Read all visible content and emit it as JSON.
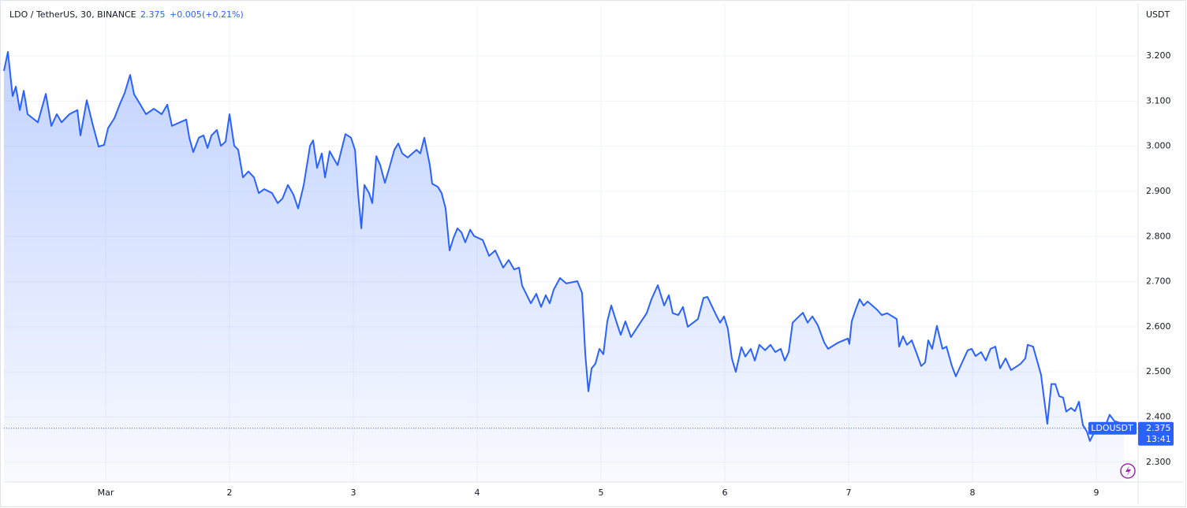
{
  "header": {
    "close": "2.375",
    "change": "+0.005",
    "change_percent": "(+0.21%)"
  },
  "chart_data": {
    "type": "area",
    "title": "LDO / TetherUS, 30, BINANCE",
    "y_label": "USDT",
    "countdown": "13:41",
    "xlim": [
      0.178,
      9.338
    ],
    "ylim": [
      2.256,
      3.31
    ],
    "grid": true,
    "xticks": [
      {
        "value": 1,
        "label": "Mar"
      },
      2,
      3,
      4,
      5,
      6,
      7,
      8,
      9
    ],
    "yticks": [
      {
        "value": 2.3,
        "label": "2.300"
      },
      {
        "value": 2.4,
        "label": "2.400"
      },
      {
        "value": 2.5,
        "label": "2.500"
      },
      {
        "value": 2.6,
        "label": "2.600"
      },
      {
        "value": 2.7,
        "label": "2.700"
      },
      {
        "value": 2.8,
        "label": "2.800"
      },
      {
        "value": 2.9,
        "label": "2.900"
      },
      {
        "value": 3.0,
        "label": "3.000"
      },
      {
        "value": 3.1,
        "label": "3.100"
      },
      {
        "value": 3.2,
        "label": "3.200"
      }
    ],
    "x": [
      0.178,
      0.21,
      0.248,
      0.274,
      0.306,
      0.338,
      0.369,
      0.452,
      0.516,
      0.561,
      0.605,
      0.643,
      0.707,
      0.771,
      0.796,
      0.847,
      0.898,
      0.943,
      0.987,
      1.019,
      1.07,
      1.115,
      1.153,
      1.197,
      1.229,
      1.28,
      1.325,
      1.389,
      1.452,
      1.497,
      1.535,
      1.599,
      1.65,
      1.675,
      1.707,
      1.752,
      1.79,
      1.822,
      1.854,
      1.898,
      1.93,
      1.968,
      2.0,
      2.038,
      2.07,
      2.108,
      2.153,
      2.197,
      2.236,
      2.28,
      2.344,
      2.389,
      2.427,
      2.471,
      2.516,
      2.554,
      2.599,
      2.65,
      2.675,
      2.707,
      2.745,
      2.771,
      2.809,
      2.847,
      2.873,
      2.936,
      2.981,
      3.013,
      3.038,
      3.064,
      3.089,
      3.127,
      3.153,
      3.185,
      3.217,
      3.255,
      3.287,
      3.331,
      3.363,
      3.395,
      3.439,
      3.51,
      3.541,
      3.573,
      3.618,
      3.637,
      3.682,
      3.713,
      3.745,
      3.777,
      3.809,
      3.841,
      3.873,
      3.904,
      3.943,
      3.975,
      4.045,
      4.096,
      4.146,
      4.21,
      4.255,
      4.299,
      4.338,
      4.363,
      4.401,
      4.433,
      4.478,
      4.516,
      4.554,
      4.586,
      4.618,
      4.669,
      4.72,
      4.809,
      4.847,
      4.873,
      4.898,
      4.924,
      4.955,
      4.987,
      5.019,
      5.051,
      5.083,
      5.127,
      5.159,
      5.197,
      5.242,
      5.318,
      5.369,
      5.408,
      5.459,
      5.484,
      5.51,
      5.548,
      5.58,
      5.624,
      5.662,
      5.701,
      5.783,
      5.828,
      5.86,
      5.93,
      5.962,
      5.994,
      6.025,
      6.057,
      6.089,
      6.134,
      6.166,
      6.21,
      6.242,
      6.28,
      6.325,
      6.369,
      6.408,
      6.452,
      6.484,
      6.516,
      6.548,
      6.592,
      6.631,
      6.669,
      6.707,
      6.752,
      6.803,
      6.834,
      6.917,
      6.994,
      7.006,
      7.025,
      7.057,
      7.089,
      7.121,
      7.153,
      7.229,
      7.268,
      7.312,
      7.389,
      7.408,
      7.439,
      7.471,
      7.51,
      7.548,
      7.586,
      7.618,
      7.643,
      7.675,
      7.713,
      7.758,
      7.79,
      7.834,
      7.866,
      7.917,
      7.962,
      7.994,
      8.025,
      8.07,
      8.108,
      8.146,
      8.185,
      8.223,
      8.268,
      8.312,
      8.389,
      8.427,
      8.446,
      8.49,
      8.522,
      8.554,
      8.58,
      8.605,
      8.637,
      8.669,
      8.701,
      8.732,
      8.758,
      8.796,
      8.828,
      8.86,
      8.892,
      8.924,
      8.949,
      8.987,
      9.032,
      9.076,
      9.108,
      9.146,
      9.191,
      9.223
    ],
    "series": [
      {
        "name": "LDOUSDT",
        "color": "#2962ff",
        "values": [
          3.167,
          3.209,
          3.111,
          3.132,
          3.08,
          3.123,
          3.071,
          3.053,
          3.116,
          3.045,
          3.071,
          3.053,
          3.071,
          3.08,
          3.024,
          3.102,
          3.045,
          2.999,
          3.003,
          3.04,
          3.062,
          3.094,
          3.118,
          3.158,
          3.115,
          3.092,
          3.071,
          3.083,
          3.071,
          3.092,
          3.045,
          3.053,
          3.059,
          3.019,
          2.987,
          3.019,
          3.024,
          2.996,
          3.024,
          3.036,
          3.001,
          3.01,
          3.071,
          3.001,
          2.992,
          2.931,
          2.944,
          2.931,
          2.896,
          2.905,
          2.896,
          2.874,
          2.884,
          2.914,
          2.893,
          2.862,
          2.914,
          3.001,
          3.013,
          2.952,
          2.984,
          2.931,
          2.989,
          2.97,
          2.958,
          3.027,
          3.019,
          2.992,
          2.896,
          2.818,
          2.914,
          2.896,
          2.874,
          2.978,
          2.958,
          2.919,
          2.949,
          2.992,
          3.006,
          2.984,
          2.975,
          2.992,
          2.984,
          3.019,
          2.958,
          2.917,
          2.91,
          2.896,
          2.862,
          2.769,
          2.797,
          2.818,
          2.809,
          2.787,
          2.815,
          2.801,
          2.792,
          2.757,
          2.769,
          2.731,
          2.748,
          2.727,
          2.731,
          2.691,
          2.67,
          2.652,
          2.673,
          2.644,
          2.67,
          2.652,
          2.682,
          2.708,
          2.696,
          2.701,
          2.675,
          2.539,
          2.457,
          2.508,
          2.518,
          2.551,
          2.539,
          2.612,
          2.647,
          2.609,
          2.582,
          2.612,
          2.577,
          2.609,
          2.63,
          2.661,
          2.692,
          2.67,
          2.647,
          2.67,
          2.63,
          2.626,
          2.644,
          2.6,
          2.617,
          2.664,
          2.666,
          2.626,
          2.609,
          2.623,
          2.595,
          2.53,
          2.5,
          2.555,
          2.534,
          2.551,
          2.525,
          2.56,
          2.548,
          2.56,
          2.544,
          2.551,
          2.525,
          2.544,
          2.609,
          2.621,
          2.631,
          2.609,
          2.623,
          2.603,
          2.565,
          2.551,
          2.565,
          2.574,
          2.562,
          2.612,
          2.638,
          2.661,
          2.647,
          2.656,
          2.638,
          2.626,
          2.63,
          2.617,
          2.556,
          2.579,
          2.56,
          2.57,
          2.542,
          2.513,
          2.521,
          2.57,
          2.551,
          2.602,
          2.551,
          2.556,
          2.513,
          2.49,
          2.521,
          2.548,
          2.551,
          2.535,
          2.544,
          2.525,
          2.551,
          2.556,
          2.508,
          2.53,
          2.504,
          2.518,
          2.53,
          2.56,
          2.556,
          2.525,
          2.494,
          2.438,
          2.385,
          2.473,
          2.473,
          2.446,
          2.443,
          2.412,
          2.42,
          2.413,
          2.434,
          2.382,
          2.368,
          2.347,
          2.368,
          2.364,
          2.382,
          2.405,
          2.391,
          2.387,
          2.375
        ]
      }
    ]
  }
}
